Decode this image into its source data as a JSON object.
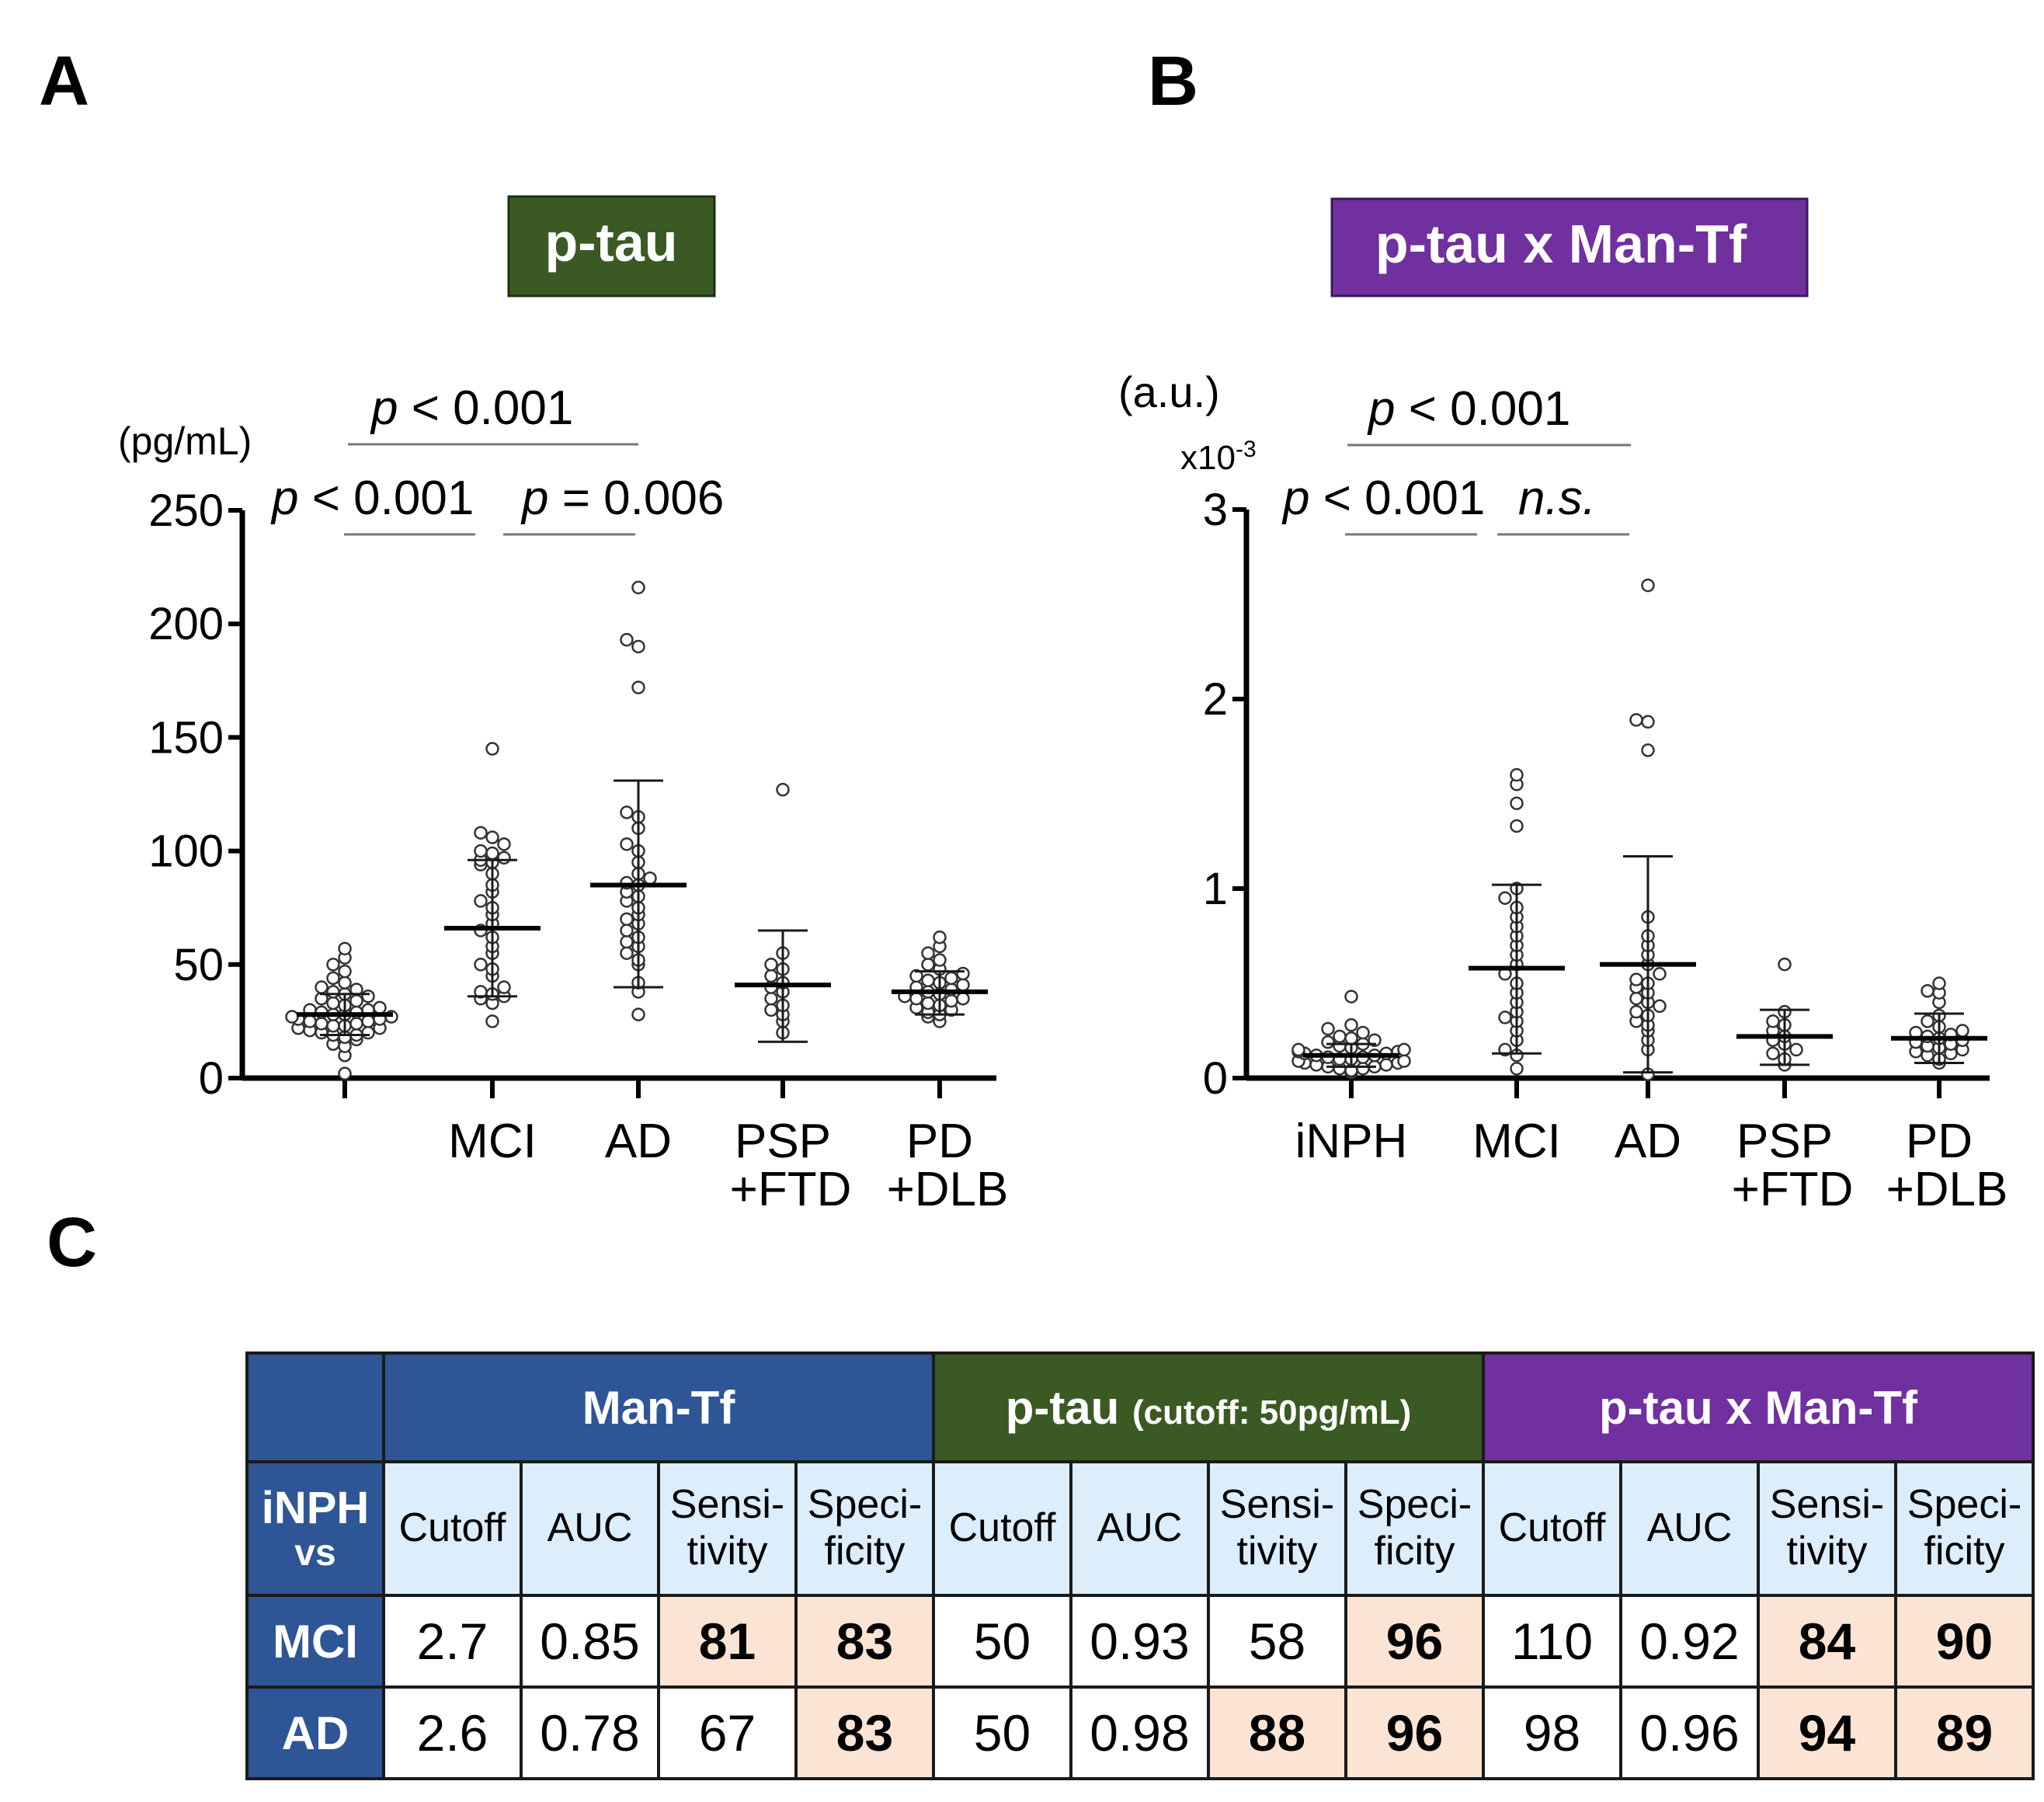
{
  "colors": {
    "ptau_title_bg": "#3b5a23",
    "combo_title_bg": "#7030a0",
    "mantf_header_bg": "#2e5595",
    "subheader_bg": "#dcedfb",
    "highlight_bg": "#fbe4d4"
  },
  "panels": {
    "A": {
      "letter": "A",
      "title": "p-tau",
      "unit": "(pg/mL)",
      "categories": [
        "",
        "MCI",
        "AD",
        "PSP\n+FTD",
        "PD\n+DLB"
      ]
    },
    "B": {
      "letter": "B",
      "title": "p-tau x Man-Tf",
      "unit": "(a.u.)",
      "multiplier_base": "x10",
      "multiplier_exp": "-3",
      "categories": [
        "iNPH",
        "MCI",
        "AD",
        "PSP\n+FTD",
        "PD\n+DLB"
      ]
    },
    "C": {
      "letter": "C"
    }
  },
  "chart_data": [
    {
      "type": "scatter",
      "panel": "A",
      "title": "p-tau",
      "ylabel": "(pg/mL)",
      "ylim": [
        0,
        250
      ],
      "yticks": [
        0,
        50,
        100,
        150,
        200,
        250
      ],
      "categories": [
        "",
        "MCI",
        "AD",
        "PSP +FTD",
        "PD +DLB"
      ],
      "series": [
        {
          "name": "iNPH",
          "mean": 28,
          "sd_low": 19,
          "sd_high": 37,
          "values": [
            2,
            10,
            14,
            15,
            17,
            18,
            19,
            19,
            20,
            20,
            21,
            22,
            22,
            23,
            23,
            24,
            24,
            25,
            25,
            26,
            26,
            27,
            27,
            28,
            28,
            29,
            29,
            30,
            30,
            31,
            32,
            33,
            34,
            35,
            36,
            37,
            38,
            39,
            40,
            42,
            44,
            47,
            50,
            53,
            57
          ]
        },
        {
          "name": "MCI",
          "mean": 66,
          "sd_low": 36,
          "sd_high": 96,
          "values": [
            25,
            33,
            35,
            36,
            37,
            38,
            40,
            45,
            48,
            50,
            55,
            58,
            62,
            65,
            68,
            72,
            75,
            78,
            82,
            85,
            90,
            94,
            95,
            96,
            97,
            99,
            100,
            103,
            106,
            108,
            145
          ]
        },
        {
          "name": "AD",
          "mean": 85,
          "sd_low": 40,
          "sd_high": 131,
          "values": [
            28,
            38,
            42,
            50,
            52,
            55,
            58,
            60,
            62,
            65,
            68,
            70,
            72,
            75,
            78,
            80,
            82,
            85,
            86,
            88,
            90,
            95,
            100,
            103,
            110,
            115,
            117,
            172,
            190,
            193,
            216
          ]
        },
        {
          "name": "PSP +FTD",
          "mean": 41,
          "sd_low": 16,
          "sd_high": 65,
          "values": [
            20,
            25,
            28,
            30,
            32,
            35,
            38,
            40,
            42,
            45,
            48,
            50,
            55,
            127
          ]
        },
        {
          "name": "PD +DLB",
          "mean": 38,
          "sd_low": 28,
          "sd_high": 47,
          "values": [
            25,
            27,
            28,
            29,
            30,
            31,
            32,
            33,
            34,
            35,
            35,
            36,
            37,
            38,
            39,
            40,
            41,
            42,
            43,
            44,
            45,
            46,
            48,
            50,
            52,
            55,
            58,
            62
          ]
        }
      ],
      "comparisons": [
        {
          "label_p": "p",
          "label_rest": " < 0.001",
          "from": "iNPH",
          "to": "MCI"
        },
        {
          "label_p": "p",
          "label_rest": " = 0.006",
          "from": "MCI",
          "to": "AD"
        },
        {
          "label_p": "p",
          "label_rest": " < 0.001",
          "from": "iNPH",
          "to": "AD"
        }
      ]
    },
    {
      "type": "scatter",
      "panel": "B",
      "title": "p-tau x Man-Tf",
      "ylabel": "(a.u.) x10-3",
      "ylim": [
        0,
        3
      ],
      "yticks": [
        0,
        1,
        2,
        3
      ],
      "categories": [
        "iNPH",
        "MCI",
        "AD",
        "PSP +FTD",
        "PD +DLB"
      ],
      "series": [
        {
          "name": "iNPH",
          "mean": 0.12,
          "sd_low": 0.06,
          "sd_high": 0.18,
          "values": [
            0.03,
            0.04,
            0.05,
            0.05,
            0.06,
            0.06,
            0.07,
            0.07,
            0.08,
            0.08,
            0.09,
            0.09,
            0.1,
            0.1,
            0.11,
            0.11,
            0.12,
            0.12,
            0.13,
            0.13,
            0.14,
            0.14,
            0.15,
            0.15,
            0.16,
            0.17,
            0.18,
            0.19,
            0.2,
            0.21,
            0.22,
            0.24,
            0.26,
            0.28,
            0.43
          ]
        },
        {
          "name": "MCI",
          "mean": 0.58,
          "sd_low": 0.13,
          "sd_high": 1.02,
          "values": [
            0.05,
            0.12,
            0.15,
            0.2,
            0.25,
            0.3,
            0.32,
            0.35,
            0.4,
            0.45,
            0.5,
            0.55,
            0.6,
            0.65,
            0.7,
            0.75,
            0.8,
            0.85,
            0.9,
            0.95,
            1.0,
            1.33,
            1.45,
            1.55,
            1.6
          ]
        },
        {
          "name": "AD",
          "mean": 0.6,
          "sd_low": 0.03,
          "sd_high": 1.17,
          "values": [
            0.02,
            0.15,
            0.2,
            0.25,
            0.28,
            0.3,
            0.33,
            0.35,
            0.38,
            0.4,
            0.42,
            0.45,
            0.48,
            0.5,
            0.52,
            0.55,
            0.6,
            0.65,
            0.7,
            0.75,
            0.85,
            1.73,
            1.88,
            1.89,
            2.6
          ]
        },
        {
          "name": "PSP +FTD",
          "mean": 0.22,
          "sd_low": 0.07,
          "sd_high": 0.36,
          "values": [
            0.07,
            0.1,
            0.13,
            0.15,
            0.18,
            0.2,
            0.22,
            0.25,
            0.28,
            0.3,
            0.35,
            0.6
          ]
        },
        {
          "name": "PD +DLB",
          "mean": 0.21,
          "sd_low": 0.08,
          "sd_high": 0.34,
          "values": [
            0.08,
            0.1,
            0.12,
            0.13,
            0.14,
            0.15,
            0.16,
            0.17,
            0.18,
            0.19,
            0.2,
            0.21,
            0.22,
            0.23,
            0.24,
            0.25,
            0.27,
            0.3,
            0.33,
            0.4,
            0.45,
            0.46,
            0.5
          ]
        }
      ],
      "comparisons": [
        {
          "label_p": "p",
          "label_rest": " < 0.001",
          "from": "iNPH",
          "to": "MCI"
        },
        {
          "label_p": "n.s.",
          "label_rest": "",
          "from": "MCI",
          "to": "AD"
        },
        {
          "label_p": "p",
          "label_rest": " < 0.001",
          "from": "iNPH",
          "to": "AD"
        }
      ]
    },
    {
      "type": "table",
      "panel": "C",
      "corner_line1": "iNPH",
      "corner_line2": "vs",
      "groups": [
        {
          "name": "Man-Tf",
          "note": ""
        },
        {
          "name": "p-tau",
          "note": "(cutoff: 50pg/mL)"
        },
        {
          "name": "p-tau x Man-Tf",
          "note": ""
        }
      ],
      "columns": [
        [
          "Cutoff"
        ],
        [
          "AUC"
        ],
        [
          "Sensi-",
          "tivity"
        ],
        [
          "Speci-",
          "ficity"
        ]
      ],
      "rows": [
        {
          "label": "MCI",
          "cells": [
            "2.7",
            "0.85",
            "81",
            "83",
            "50",
            "0.93",
            "58",
            "96",
            "110",
            "0.92",
            "84",
            "90"
          ],
          "highlight": [
            false,
            false,
            true,
            true,
            false,
            false,
            false,
            true,
            false,
            false,
            true,
            true
          ]
        },
        {
          "label": "AD",
          "cells": [
            "2.6",
            "0.78",
            "67",
            "83",
            "50",
            "0.98",
            "88",
            "96",
            "98",
            "0.96",
            "94",
            "89"
          ],
          "highlight": [
            false,
            false,
            false,
            true,
            false,
            false,
            true,
            true,
            false,
            false,
            true,
            true
          ]
        }
      ]
    }
  ]
}
